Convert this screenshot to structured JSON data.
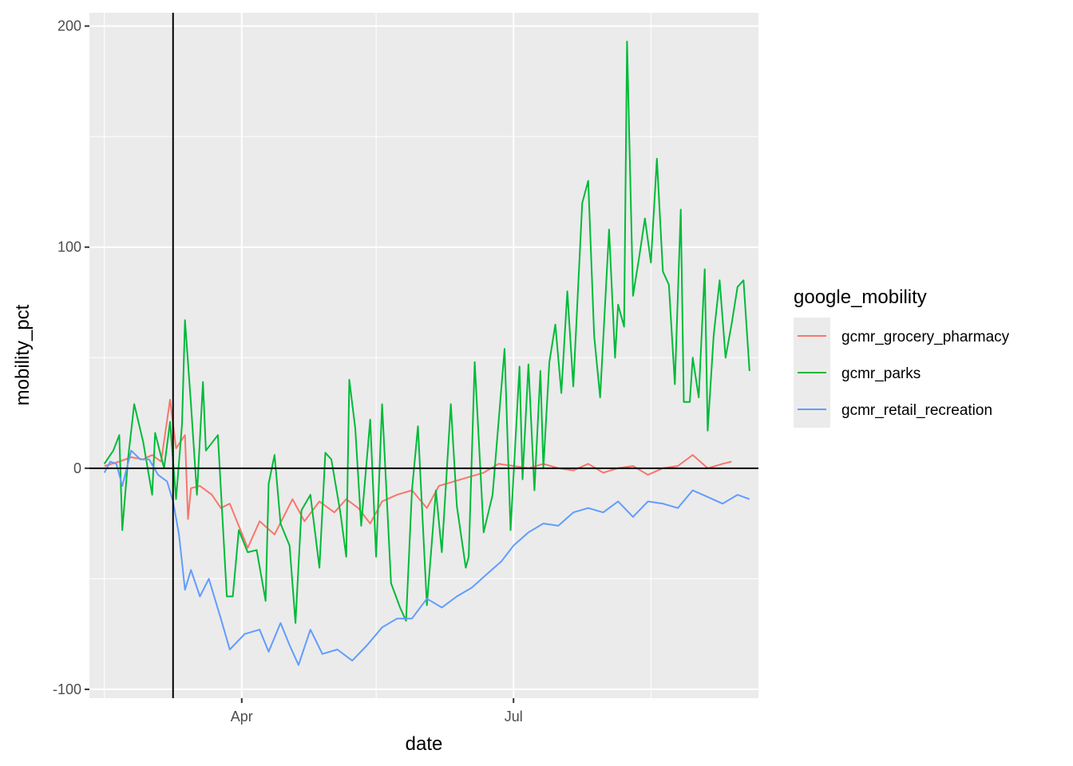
{
  "chart_data": {
    "type": "line",
    "xlabel": "date",
    "ylabel": "mobility_pct",
    "ylim": [
      -104,
      206
    ],
    "x_ticks": [
      {
        "label": "Apr",
        "x": "2020-04-01"
      },
      {
        "label": "Jul",
        "x": "2020-07-01"
      }
    ],
    "y_ticks": [
      {
        "label": "-100",
        "value": -100
      },
      {
        "label": "0",
        "value": 0
      },
      {
        "label": "100",
        "value": 100
      },
      {
        "label": "200",
        "value": 200
      }
    ],
    "x_range": [
      "2020-02-10",
      "2020-09-21"
    ],
    "vline_date": "2020-03-09",
    "hline_value": 0,
    "legend": {
      "title": "google_mobility",
      "placement": "right"
    },
    "grid": true,
    "series": [
      {
        "name": "gcmr_grocery_pharmacy",
        "color": "#F8766D",
        "points": [
          [
            "2020-02-15",
            1
          ],
          [
            "2020-02-20",
            3
          ],
          [
            "2020-02-24",
            5
          ],
          [
            "2020-02-28",
            4
          ],
          [
            "2020-03-02",
            6
          ],
          [
            "2020-03-05",
            3
          ],
          [
            "2020-03-08",
            31
          ],
          [
            "2020-03-10",
            9
          ],
          [
            "2020-03-13",
            15
          ],
          [
            "2020-03-14",
            -23
          ],
          [
            "2020-03-15",
            -9
          ],
          [
            "2020-03-18",
            -8
          ],
          [
            "2020-03-22",
            -12
          ],
          [
            "2020-03-25",
            -18
          ],
          [
            "2020-03-28",
            -16
          ],
          [
            "2020-04-03",
            -36
          ],
          [
            "2020-04-07",
            -24
          ],
          [
            "2020-04-12",
            -30
          ],
          [
            "2020-04-18",
            -14
          ],
          [
            "2020-04-22",
            -24
          ],
          [
            "2020-04-27",
            -15
          ],
          [
            "2020-05-02",
            -20
          ],
          [
            "2020-05-06",
            -14
          ],
          [
            "2020-05-10",
            -18
          ],
          [
            "2020-05-14",
            -25
          ],
          [
            "2020-05-18",
            -15
          ],
          [
            "2020-05-23",
            -12
          ],
          [
            "2020-05-28",
            -10
          ],
          [
            "2020-06-02",
            -18
          ],
          [
            "2020-06-06",
            -8
          ],
          [
            "2020-06-11",
            -6
          ],
          [
            "2020-06-16",
            -4
          ],
          [
            "2020-06-21",
            -2
          ],
          [
            "2020-06-26",
            2
          ],
          [
            "2020-07-01",
            1
          ],
          [
            "2020-07-06",
            0
          ],
          [
            "2020-07-11",
            2
          ],
          [
            "2020-07-16",
            0
          ],
          [
            "2020-07-21",
            -1
          ],
          [
            "2020-07-26",
            2
          ],
          [
            "2020-07-31",
            -2
          ],
          [
            "2020-08-05",
            0
          ],
          [
            "2020-08-10",
            1
          ],
          [
            "2020-08-15",
            -3
          ],
          [
            "2020-08-20",
            0
          ],
          [
            "2020-08-25",
            1
          ],
          [
            "2020-08-30",
            6
          ],
          [
            "2020-09-04",
            0
          ],
          [
            "2020-09-09",
            2
          ],
          [
            "2020-09-12",
            3
          ]
        ]
      },
      {
        "name": "gcmr_parks",
        "color": "#00BA38",
        "points": [
          [
            "2020-02-15",
            2
          ],
          [
            "2020-02-18",
            8
          ],
          [
            "2020-02-20",
            15
          ],
          [
            "2020-02-21",
            -28
          ],
          [
            "2020-02-23",
            5
          ],
          [
            "2020-02-25",
            29
          ],
          [
            "2020-02-28",
            12
          ],
          [
            "2020-03-02",
            -12
          ],
          [
            "2020-03-03",
            16
          ],
          [
            "2020-03-06",
            0
          ],
          [
            "2020-03-08",
            21
          ],
          [
            "2020-03-10",
            -14
          ],
          [
            "2020-03-12",
            20
          ],
          [
            "2020-03-13",
            67
          ],
          [
            "2020-03-15",
            29
          ],
          [
            "2020-03-17",
            -12
          ],
          [
            "2020-03-19",
            39
          ],
          [
            "2020-03-20",
            8
          ],
          [
            "2020-03-24",
            15
          ],
          [
            "2020-03-27",
            -58
          ],
          [
            "2020-03-29",
            -58
          ],
          [
            "2020-03-31",
            -28
          ],
          [
            "2020-04-03",
            -38
          ],
          [
            "2020-04-06",
            -37
          ],
          [
            "2020-04-09",
            -60
          ],
          [
            "2020-04-10",
            -7
          ],
          [
            "2020-04-12",
            6
          ],
          [
            "2020-04-14",
            -25
          ],
          [
            "2020-04-17",
            -35
          ],
          [
            "2020-04-19",
            -70
          ],
          [
            "2020-04-21",
            -19
          ],
          [
            "2020-04-24",
            -12
          ],
          [
            "2020-04-27",
            -45
          ],
          [
            "2020-04-29",
            7
          ],
          [
            "2020-05-01",
            4
          ],
          [
            "2020-05-04",
            -20
          ],
          [
            "2020-05-06",
            -40
          ],
          [
            "2020-05-07",
            40
          ],
          [
            "2020-05-09",
            18
          ],
          [
            "2020-05-11",
            -26
          ],
          [
            "2020-05-14",
            22
          ],
          [
            "2020-05-16",
            -40
          ],
          [
            "2020-05-18",
            29
          ],
          [
            "2020-05-21",
            -52
          ],
          [
            "2020-05-24",
            -63
          ],
          [
            "2020-05-26",
            -69
          ],
          [
            "2020-05-28",
            -10
          ],
          [
            "2020-05-30",
            19
          ],
          [
            "2020-06-02",
            -62
          ],
          [
            "2020-06-05",
            -10
          ],
          [
            "2020-06-07",
            -38
          ],
          [
            "2020-06-10",
            29
          ],
          [
            "2020-06-12",
            -17
          ],
          [
            "2020-06-15",
            -45
          ],
          [
            "2020-06-16",
            -40
          ],
          [
            "2020-06-18",
            48
          ],
          [
            "2020-06-21",
            -29
          ],
          [
            "2020-06-24",
            -12
          ],
          [
            "2020-06-28",
            54
          ],
          [
            "2020-06-30",
            -28
          ],
          [
            "2020-07-03",
            46
          ],
          [
            "2020-07-04",
            -5
          ],
          [
            "2020-07-06",
            47
          ],
          [
            "2020-07-08",
            -10
          ],
          [
            "2020-07-10",
            44
          ],
          [
            "2020-07-11",
            0
          ],
          [
            "2020-07-13",
            48
          ],
          [
            "2020-07-15",
            65
          ],
          [
            "2020-07-17",
            34
          ],
          [
            "2020-07-19",
            80
          ],
          [
            "2020-07-21",
            37
          ],
          [
            "2020-07-24",
            120
          ],
          [
            "2020-07-26",
            130
          ],
          [
            "2020-07-28",
            60
          ],
          [
            "2020-07-30",
            32
          ],
          [
            "2020-08-02",
            108
          ],
          [
            "2020-08-04",
            50
          ],
          [
            "2020-08-05",
            74
          ],
          [
            "2020-08-07",
            64
          ],
          [
            "2020-08-08",
            193
          ],
          [
            "2020-08-10",
            78
          ],
          [
            "2020-08-12",
            95
          ],
          [
            "2020-08-14",
            113
          ],
          [
            "2020-08-16",
            93
          ],
          [
            "2020-08-18",
            140
          ],
          [
            "2020-08-20",
            89
          ],
          [
            "2020-08-22",
            83
          ],
          [
            "2020-08-24",
            38
          ],
          [
            "2020-08-26",
            117
          ],
          [
            "2020-08-27",
            30
          ],
          [
            "2020-08-29",
            30
          ],
          [
            "2020-08-30",
            50
          ],
          [
            "2020-09-01",
            32
          ],
          [
            "2020-09-03",
            90
          ],
          [
            "2020-09-04",
            17
          ],
          [
            "2020-09-06",
            60
          ],
          [
            "2020-09-08",
            85
          ],
          [
            "2020-09-10",
            50
          ],
          [
            "2020-09-12",
            65
          ],
          [
            "2020-09-14",
            82
          ],
          [
            "2020-09-16",
            85
          ],
          [
            "2020-09-18",
            44
          ]
        ]
      },
      {
        "name": "gcmr_retail_recreation",
        "color": "#619CFF",
        "points": [
          [
            "2020-02-15",
            -2
          ],
          [
            "2020-02-17",
            3
          ],
          [
            "2020-02-19",
            2
          ],
          [
            "2020-02-21",
            -8
          ],
          [
            "2020-02-24",
            8
          ],
          [
            "2020-02-27",
            4
          ],
          [
            "2020-03-01",
            4
          ],
          [
            "2020-03-04",
            -3
          ],
          [
            "2020-03-07",
            -6
          ],
          [
            "2020-03-09",
            -15
          ],
          [
            "2020-03-11",
            -30
          ],
          [
            "2020-03-13",
            -55
          ],
          [
            "2020-03-15",
            -46
          ],
          [
            "2020-03-18",
            -58
          ],
          [
            "2020-03-21",
            -50
          ],
          [
            "2020-03-25",
            -68
          ],
          [
            "2020-03-28",
            -82
          ],
          [
            "2020-04-02",
            -75
          ],
          [
            "2020-04-07",
            -73
          ],
          [
            "2020-04-10",
            -83
          ],
          [
            "2020-04-14",
            -70
          ],
          [
            "2020-04-17",
            -80
          ],
          [
            "2020-04-20",
            -89
          ],
          [
            "2020-04-24",
            -73
          ],
          [
            "2020-04-28",
            -84
          ],
          [
            "2020-05-03",
            -82
          ],
          [
            "2020-05-08",
            -87
          ],
          [
            "2020-05-13",
            -80
          ],
          [
            "2020-05-18",
            -72
          ],
          [
            "2020-05-23",
            -68
          ],
          [
            "2020-05-28",
            -68
          ],
          [
            "2020-06-02",
            -59
          ],
          [
            "2020-06-07",
            -63
          ],
          [
            "2020-06-12",
            -58
          ],
          [
            "2020-06-17",
            -54
          ],
          [
            "2020-06-22",
            -48
          ],
          [
            "2020-06-27",
            -42
          ],
          [
            "2020-07-01",
            -35
          ],
          [
            "2020-07-06",
            -29
          ],
          [
            "2020-07-11",
            -25
          ],
          [
            "2020-07-16",
            -26
          ],
          [
            "2020-07-21",
            -20
          ],
          [
            "2020-07-26",
            -18
          ],
          [
            "2020-07-31",
            -20
          ],
          [
            "2020-08-05",
            -15
          ],
          [
            "2020-08-10",
            -22
          ],
          [
            "2020-08-15",
            -15
          ],
          [
            "2020-08-20",
            -16
          ],
          [
            "2020-08-25",
            -18
          ],
          [
            "2020-08-30",
            -10
          ],
          [
            "2020-09-04",
            -13
          ],
          [
            "2020-09-09",
            -16
          ],
          [
            "2020-09-14",
            -12
          ],
          [
            "2020-09-18",
            -14
          ]
        ]
      }
    ]
  }
}
